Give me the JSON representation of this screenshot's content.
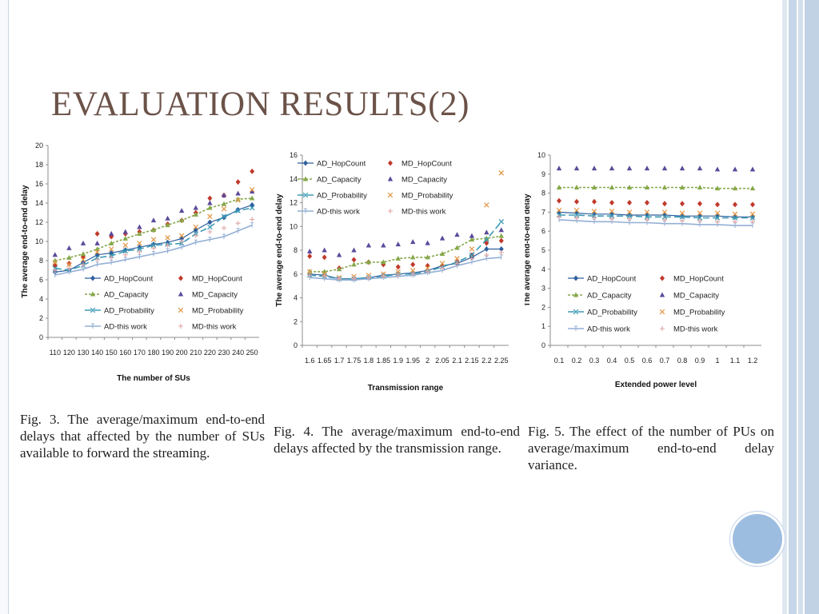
{
  "slide": {
    "title": "EVALUATION RESULTS(2)",
    "captions": [
      "Fig. 3.  The average/maximum end-to-end delays that affected by the number of SUs available to forward the streaming.",
      "Fig. 4.  The average/maximum end-to-end delays affected by the transmission range.",
      "Fig. 5.  The effect of the number of PUs on average/maximum end-to-end delay variance."
    ]
  },
  "colors": {
    "title": "#6b5248",
    "frame_blue": "#c9d6e6",
    "circle": "#9dbde0"
  },
  "chart_data": [
    {
      "type": "line",
      "xlabel": "The number of SUs",
      "ylabel": "The average end-to-end delay",
      "categories": [
        "110",
        "120",
        "130",
        "140",
        "150",
        "160",
        "170",
        "180",
        "190",
        "200",
        "210",
        "220",
        "230",
        "240",
        "250"
      ],
      "ylim": [
        0,
        20
      ],
      "yticks": [
        0,
        2,
        4,
        6,
        8,
        10,
        12,
        14,
        16,
        18,
        20
      ],
      "legend_position": "bottom-inside",
      "series": [
        {
          "name": "AD_HopCount",
          "values": [
            6.8,
            7.0,
            7.8,
            8.6,
            8.8,
            9.1,
            9.4,
            9.7,
            9.9,
            10.3,
            11.2,
            12.0,
            12.5,
            13.3,
            13.8
          ]
        },
        {
          "name": "MD_HopCount",
          "values": [
            7.5,
            7.7,
            8.4,
            10.8,
            10.5,
            10.8,
            11.0,
            11.2,
            11.8,
            12.2,
            13.0,
            14.5,
            14.8,
            16.2,
            17.3
          ]
        },
        {
          "name": "AD_Capacity",
          "values": [
            8.0,
            8.3,
            8.7,
            9.2,
            9.8,
            10.3,
            10.8,
            11.2,
            11.7,
            12.2,
            12.8,
            13.5,
            13.9,
            14.4,
            14.5
          ]
        },
        {
          "name": "MD_Capacity",
          "values": [
            8.6,
            9.3,
            9.8,
            9.8,
            10.8,
            11.0,
            11.5,
            12.2,
            12.4,
            13.2,
            13.5,
            14.0,
            14.8,
            15.0,
            15.2
          ]
        },
        {
          "name": "AD_Probability",
          "values": [
            7.2,
            7.0,
            7.5,
            8.3,
            8.5,
            9.0,
            9.2,
            9.6,
            9.7,
            9.8,
            10.8,
            11.5,
            12.6,
            13.2,
            13.5
          ]
        },
        {
          "name": "MD_Probability",
          "values": [
            7.8,
            7.6,
            8.1,
            8.9,
            9.2,
            9.6,
            9.8,
            10.2,
            10.4,
            10.6,
            11.5,
            12.6,
            13.4,
            14.3,
            15.4
          ]
        },
        {
          "name": "AD-this work",
          "values": [
            6.5,
            6.8,
            7.1,
            7.6,
            7.8,
            8.1,
            8.4,
            8.7,
            9.0,
            9.4,
            9.9,
            10.2,
            10.5,
            11.1,
            11.7
          ]
        },
        {
          "name": "MD-this work",
          "values": [
            7.0,
            7.2,
            7.6,
            8.1,
            8.3,
            8.6,
            8.9,
            9.3,
            9.6,
            10.0,
            10.6,
            11.0,
            11.4,
            11.9,
            12.3
          ]
        }
      ]
    },
    {
      "type": "line",
      "xlabel": "Transmission range",
      "ylabel": "The average end-to-end delay",
      "categories": [
        "1.6",
        "1.65",
        "1.7",
        "1.75",
        "1.8",
        "1.85",
        "1.9",
        "1.95",
        "2",
        "2.05",
        "2.1",
        "2.15",
        "2.2",
        "2.25"
      ],
      "ylim": [
        0,
        16
      ],
      "yticks": [
        0,
        2,
        4,
        6,
        8,
        10,
        12,
        14,
        16
      ],
      "legend_position": "top-inside",
      "series": [
        {
          "name": "AD_HopCount",
          "values": [
            6.0,
            5.9,
            5.6,
            5.6,
            5.7,
            5.9,
            6.0,
            6.1,
            6.3,
            6.7,
            6.9,
            7.4,
            8.1,
            8.1
          ]
        },
        {
          "name": "MD_HopCount",
          "values": [
            7.5,
            7.4,
            6.5,
            7.2,
            7.0,
            6.8,
            6.6,
            6.8,
            6.7,
            6.7,
            7.0,
            7.6,
            8.6,
            8.8
          ]
        },
        {
          "name": "AD_Capacity",
          "values": [
            6.2,
            6.2,
            6.4,
            6.8,
            7.0,
            7.0,
            7.3,
            7.4,
            7.4,
            7.7,
            8.2,
            8.9,
            9.0,
            9.2
          ]
        },
        {
          "name": "MD_Capacity",
          "values": [
            7.9,
            8.0,
            7.6,
            8.0,
            8.4,
            8.4,
            8.5,
            8.7,
            8.6,
            9.0,
            9.3,
            9.2,
            9.5,
            9.7
          ]
        },
        {
          "name": "AD_Probability",
          "values": [
            5.9,
            5.8,
            5.6,
            5.6,
            5.7,
            5.8,
            6.0,
            6.0,
            6.2,
            6.6,
            7.0,
            7.6,
            8.9,
            10.4
          ]
        },
        {
          "name": "MD_Probability",
          "values": [
            6.2,
            6.0,
            5.7,
            5.8,
            5.9,
            6.0,
            6.2,
            6.3,
            6.5,
            6.9,
            7.3,
            8.1,
            11.8,
            14.5
          ]
        },
        {
          "name": "AD-this work",
          "values": [
            5.7,
            5.6,
            5.5,
            5.5,
            5.6,
            5.7,
            5.8,
            5.9,
            6.1,
            6.3,
            6.7,
            7.0,
            7.3,
            7.4
          ]
        },
        {
          "name": "MD-this work",
          "values": [
            5.9,
            5.8,
            5.6,
            5.6,
            5.7,
            5.8,
            5.9,
            6.0,
            6.2,
            6.5,
            6.9,
            7.3,
            7.6,
            7.8
          ]
        }
      ]
    },
    {
      "type": "line",
      "xlabel": "Extended power level",
      "ylabel": "The average end-to-end delay",
      "categories": [
        "0.1",
        "0.2",
        "0.3",
        "0.4",
        "0.5",
        "0.6",
        "0.7",
        "0.8",
        "0.9",
        "1",
        "1.1",
        "1.2"
      ],
      "ylim": [
        0,
        10
      ],
      "yticks": [
        0,
        1,
        2,
        3,
        4,
        5,
        6,
        7,
        8,
        9,
        10
      ],
      "legend_position": "bottom-inside",
      "series": [
        {
          "name": "AD_HopCount",
          "values": [
            7.0,
            6.95,
            6.9,
            6.9,
            6.85,
            6.85,
            6.85,
            6.8,
            6.8,
            6.8,
            6.75,
            6.75
          ]
        },
        {
          "name": "MD_HopCount",
          "values": [
            7.6,
            7.55,
            7.55,
            7.5,
            7.5,
            7.5,
            7.45,
            7.45,
            7.45,
            7.4,
            7.4,
            7.4
          ]
        },
        {
          "name": "AD_Capacity",
          "values": [
            8.3,
            8.3,
            8.3,
            8.3,
            8.3,
            8.3,
            8.3,
            8.3,
            8.3,
            8.25,
            8.25,
            8.25
          ]
        },
        {
          "name": "MD_Capacity",
          "values": [
            9.3,
            9.3,
            9.3,
            9.3,
            9.3,
            9.3,
            9.3,
            9.3,
            9.3,
            9.25,
            9.25,
            9.25
          ]
        },
        {
          "name": "AD_Probability",
          "values": [
            6.85,
            6.85,
            6.8,
            6.8,
            6.8,
            6.75,
            6.75,
            6.75,
            6.7,
            6.7,
            6.7,
            6.7
          ]
        },
        {
          "name": "MD_Probability",
          "values": [
            7.1,
            7.1,
            7.05,
            7.05,
            7.0,
            7.0,
            7.0,
            6.95,
            6.95,
            6.95,
            6.9,
            6.9
          ]
        },
        {
          "name": "AD-this work",
          "values": [
            6.6,
            6.55,
            6.5,
            6.5,
            6.45,
            6.45,
            6.4,
            6.4,
            6.35,
            6.35,
            6.3,
            6.3
          ]
        },
        {
          "name": "MD-this work",
          "values": [
            6.75,
            6.7,
            6.7,
            6.65,
            6.65,
            6.6,
            6.6,
            6.55,
            6.55,
            6.5,
            6.5,
            6.5
          ]
        }
      ]
    }
  ]
}
